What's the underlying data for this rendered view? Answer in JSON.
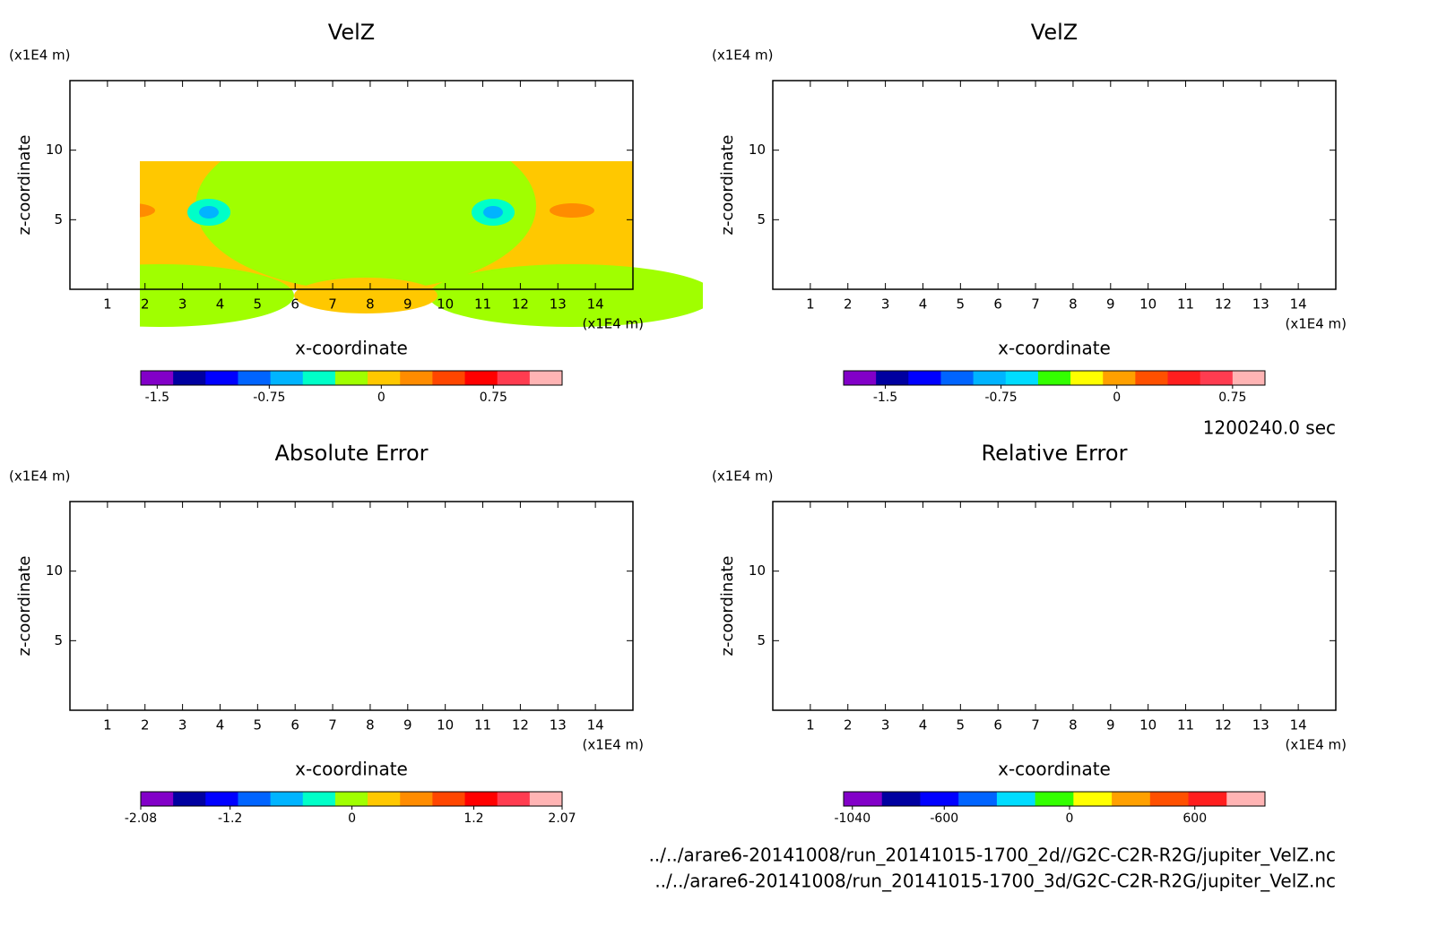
{
  "chart_data": [
    {
      "type": "contour",
      "title": "VelZ",
      "x_label": "x-coordinate",
      "y_label": "z-coordinate",
      "x_unit": "(x1E4 m)",
      "y_unit": "(x1E4 m)",
      "xlim": [
        0,
        15
      ],
      "ylim": [
        0,
        15
      ],
      "xticks": [
        1,
        2,
        3,
        4,
        5,
        6,
        7,
        8,
        9,
        10,
        11,
        12,
        13,
        14
      ],
      "yticks": [
        5,
        10
      ],
      "colorbar": {
        "lim": [
          -1.61,
          1.21
        ],
        "ticks": [
          -1.5,
          -0.75,
          0,
          0.75
        ],
        "colors": [
          "#8200c8",
          "#0000a0",
          "#0000ff",
          "#0064ff",
          "#00b4ff",
          "#00ffc8",
          "#a0ff00",
          "#ffc800",
          "#ff8c00",
          "#ff4600",
          "#ff0000",
          "#ff3c50",
          "#ffb4b4"
        ]
      }
    },
    {
      "type": "contour",
      "title": "VelZ",
      "x_label": "x-coordinate",
      "y_label": "z-coordinate",
      "x_unit": "(x1E4 m)",
      "y_unit": "(x1E4 m)",
      "xlim": [
        0,
        15
      ],
      "ylim": [
        0,
        15
      ],
      "xticks": [
        1,
        2,
        3,
        4,
        5,
        6,
        7,
        8,
        9,
        10,
        11,
        12,
        13,
        14
      ],
      "yticks": [
        5,
        10
      ],
      "colorbar": {
        "lim": [
          -1.77,
          0.96
        ],
        "ticks": [
          -1.5,
          -0.75,
          0,
          0.75
        ],
        "colors": [
          "#8200c8",
          "#0000a0",
          "#0000ff",
          "#0064ff",
          "#00b4ff",
          "#00dcff",
          "#33ff00",
          "#ffff00",
          "#ffa000",
          "#ff5000",
          "#ff1e1e",
          "#ff3c50",
          "#ffb4b4"
        ]
      }
    },
    {
      "type": "contour",
      "title": "Absolute Error",
      "x_label": "x-coordinate",
      "y_label": "z-coordinate",
      "x_unit": "(x1E4 m)",
      "y_unit": "(x1E4 m)",
      "xlim": [
        0,
        15
      ],
      "ylim": [
        0,
        15
      ],
      "xticks": [
        1,
        2,
        3,
        4,
        5,
        6,
        7,
        8,
        9,
        10,
        11,
        12,
        13,
        14
      ],
      "yticks": [
        5,
        10
      ],
      "colorbar": {
        "lim": [
          -2.08,
          2.07
        ],
        "ticks": [
          -2.08,
          -1.2,
          0,
          1.2,
          2.07
        ],
        "colors": [
          "#8200c8",
          "#0000a0",
          "#0000ff",
          "#0064ff",
          "#00b4ff",
          "#00ffc8",
          "#a0ff00",
          "#ffc800",
          "#ff8c00",
          "#ff4600",
          "#ff0000",
          "#ff3c50",
          "#ffb4b4"
        ]
      }
    },
    {
      "type": "contour",
      "title": "Relative Error",
      "x_label": "x-coordinate",
      "y_label": "z-coordinate",
      "x_unit": "(x1E4 m)",
      "y_unit": "(x1E4 m)",
      "xlim": [
        0,
        15
      ],
      "ylim": [
        0,
        15
      ],
      "xticks": [
        1,
        2,
        3,
        4,
        5,
        6,
        7,
        8,
        9,
        10,
        11,
        12,
        13,
        14
      ],
      "yticks": [
        5,
        10
      ],
      "colorbar": {
        "lim": [
          -1082,
          936
        ],
        "ticks": [
          -1040,
          -600,
          0,
          600
        ],
        "colors": [
          "#8200c8",
          "#0000a0",
          "#0000ff",
          "#0064ff",
          "#00dcff",
          "#33ff00",
          "#ffff00",
          "#ffa000",
          "#ff5000",
          "#ff1e1e",
          "#ffb4b4"
        ]
      }
    }
  ],
  "annotations": {
    "time": "1200240.0 sec",
    "files": [
      "../../arare6-20141008/run_20141015-1700_2d//G2C-C2R-R2G/jupiter_VelZ.nc",
      "../../arare6-20141008/run_20141015-1700_3d/G2C-C2R-R2G/jupiter_VelZ.nc"
    ]
  }
}
